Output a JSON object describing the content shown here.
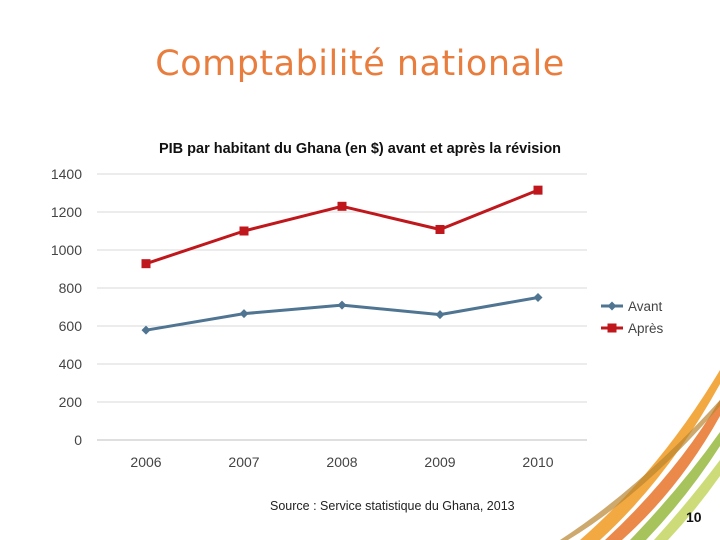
{
  "slide": {
    "title": "Comptabilité nationale",
    "source": "Source : Service statistique du Ghana, 2013",
    "page_number": "10"
  },
  "chart_data": {
    "type": "line",
    "title": "PIB par habitant du Ghana (en $) avant et après la révision",
    "xlabel": "",
    "ylabel": "",
    "categories": [
      "2006",
      "2007",
      "2008",
      "2009",
      "2010"
    ],
    "ylim": [
      0,
      1400
    ],
    "yticks": [
      0,
      200,
      400,
      600,
      800,
      1000,
      1200,
      1400
    ],
    "grid": true,
    "legend_position": "right",
    "series": [
      {
        "name": "Avant",
        "values": [
          578,
          665,
          710,
          660,
          750
        ],
        "color": "#4F7592",
        "marker": "diamond"
      },
      {
        "name": "Après",
        "values": [
          928,
          1100,
          1230,
          1108,
          1315
        ],
        "color": "#C0171C",
        "marker": "square"
      }
    ]
  }
}
